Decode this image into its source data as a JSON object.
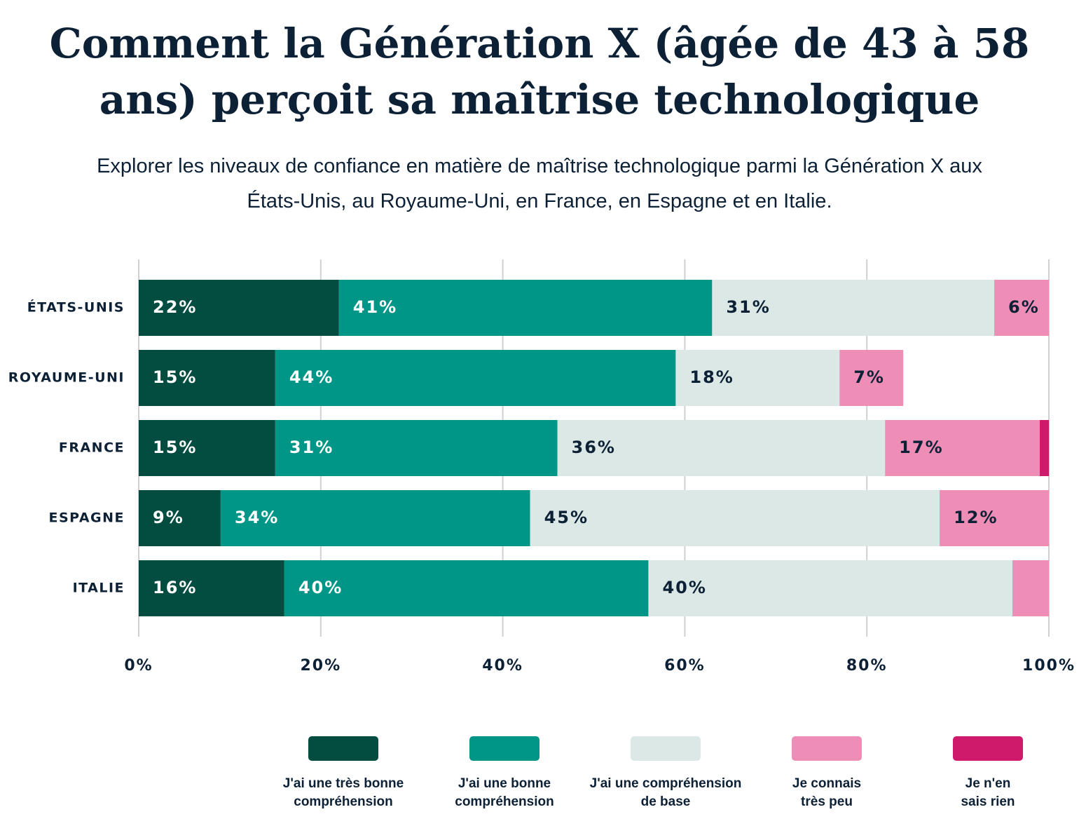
{
  "chart_data": {
    "type": "stacked_bar_horizontal",
    "title": "Comment la Génération X (âgée de 43 à 58 ans) perçoit sa maîtrise technologique",
    "subtitle": "Explorer les niveaux de confiance en matière de maîtrise technologique parmi la Génération X aux États-Unis, au Royaume-Uni, en France, en Espagne et en Italie.",
    "categories": [
      "ÉTATS-UNIS",
      "ROYAUME-UNI",
      "FRANCE",
      "ESPAGNE",
      "ITALIE"
    ],
    "series": [
      {
        "name": "J'ai une très bonne compréhension",
        "color": "#024d40",
        "values": [
          22,
          15,
          15,
          9,
          16
        ],
        "value_labels": [
          "22%",
          "15%",
          "15%",
          "9%",
          "16%"
        ]
      },
      {
        "name": "J'ai une bonne compréhension",
        "color": "#009687",
        "values": [
          41,
          44,
          31,
          34,
          40
        ],
        "value_labels": [
          "41%",
          "44%",
          "31%",
          "34%",
          "40%"
        ]
      },
      {
        "name": "J'ai une compréhension de base",
        "color": "#dce8e6",
        "values": [
          31,
          18,
          36,
          45,
          40
        ],
        "value_labels": [
          "31%",
          "18%",
          "36%",
          "45%",
          "40%"
        ]
      },
      {
        "name": "Je connais très peu",
        "color": "#ee8db5",
        "values": [
          6,
          7,
          17,
          12,
          4
        ],
        "value_labels": [
          "6%",
          "7%",
          "17%",
          "12%",
          null
        ]
      },
      {
        "name": "Je n'en sais rien",
        "color": "#cf1a6c",
        "values": [
          0,
          0,
          1,
          0,
          0
        ],
        "value_labels": [
          null,
          null,
          null,
          null,
          null
        ]
      }
    ],
    "xlim": [
      0,
      100
    ],
    "xticks": [
      {
        "value": 0,
        "label": "0%"
      },
      {
        "value": 20,
        "label": "20%"
      },
      {
        "value": 40,
        "label": "40%"
      },
      {
        "value": 60,
        "label": "60%"
      },
      {
        "value": 80,
        "label": "80%"
      },
      {
        "value": 100,
        "label": "100%"
      }
    ],
    "grid": true
  }
}
